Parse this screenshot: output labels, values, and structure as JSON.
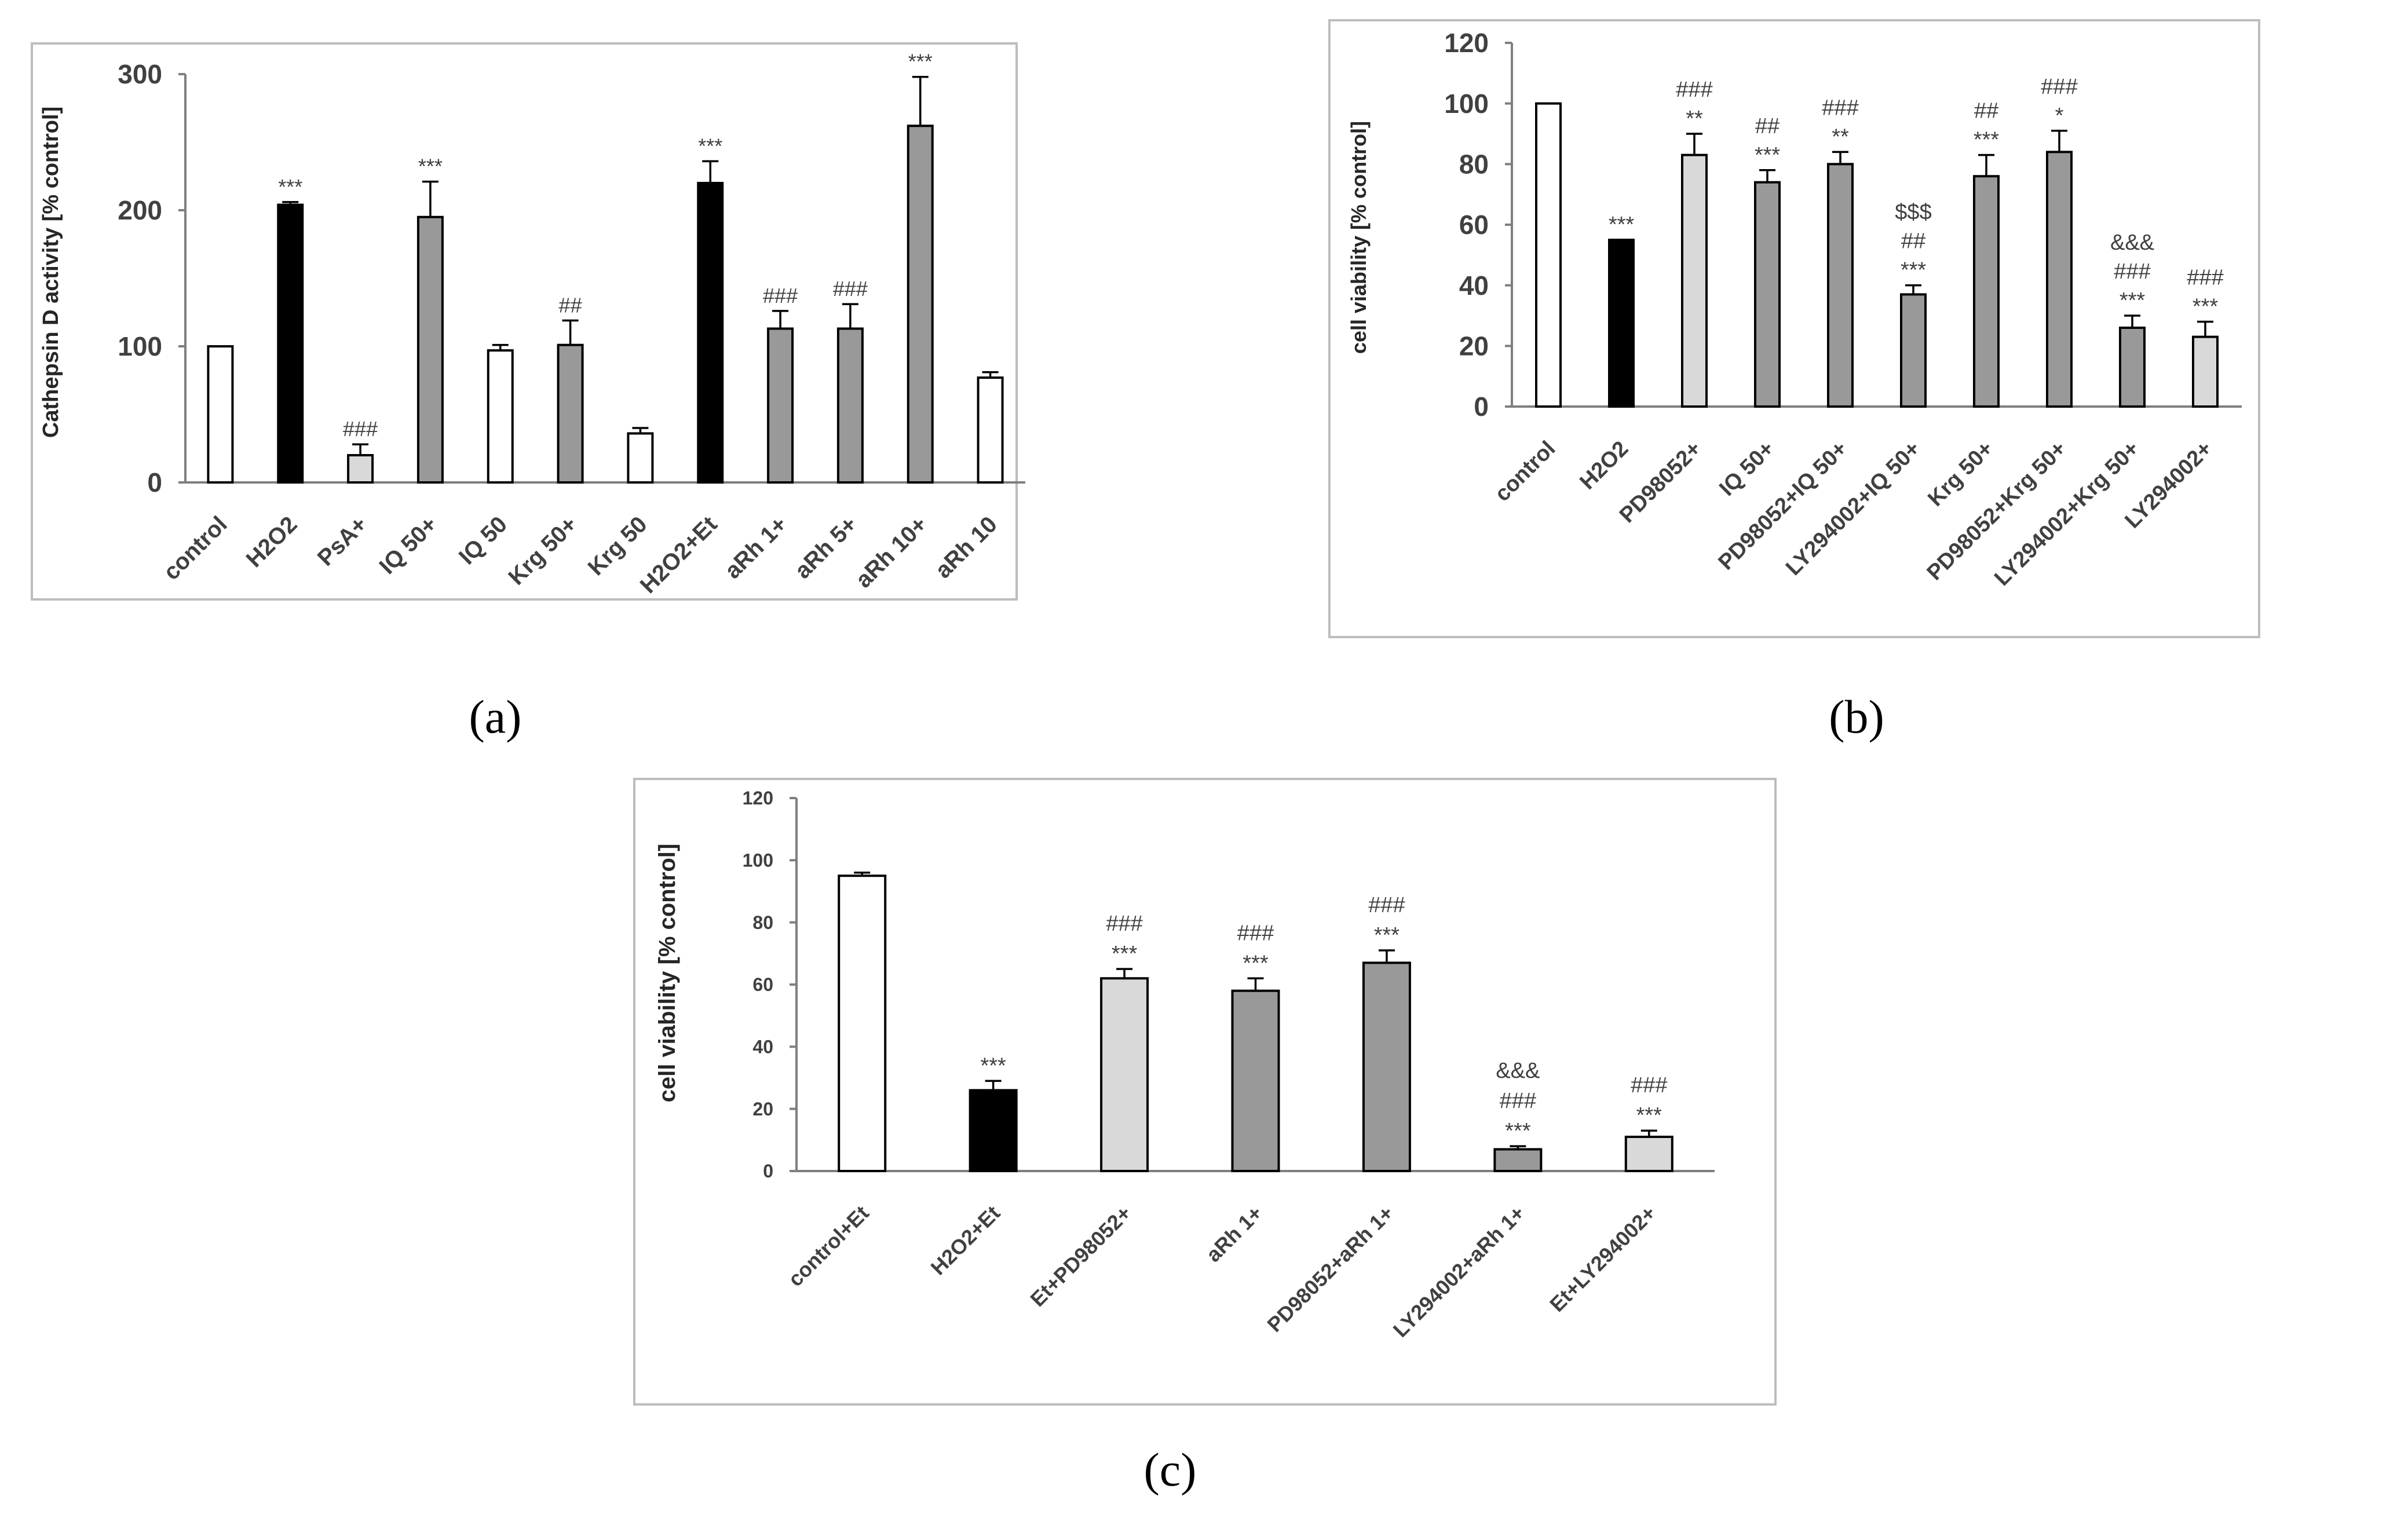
{
  "colors": {
    "white": "#ffffff",
    "black": "#000000",
    "light": "#d9d9d9",
    "grey": "#999999"
  },
  "chart_data": [
    {
      "id": "a",
      "type": "bar",
      "panel_label": "(a)",
      "ylabel": "Cathepsin D activity [% control]",
      "xlabel": "",
      "ylim": [
        0,
        300
      ],
      "yticks": [
        "0",
        "100",
        "200",
        "300"
      ],
      "categories": [
        "control",
        "H2O2",
        "PsA+",
        "IQ 50+",
        "IQ 50",
        "Krg 50+",
        "Krg 50",
        "H2O2+Et",
        "aRh 1+",
        "aRh 5+",
        "aRh 10+",
        "aRh 10"
      ],
      "values": [
        100,
        204,
        20,
        195,
        97,
        101,
        36,
        220,
        113,
        113,
        262,
        77
      ],
      "errors": [
        0,
        2,
        8,
        26,
        4,
        18,
        4,
        16,
        13,
        18,
        36,
        4
      ],
      "fills": [
        "white",
        "black",
        "light",
        "grey",
        "white",
        "grey",
        "white",
        "black",
        "grey",
        "grey",
        "grey",
        "white"
      ],
      "annotations": [
        [],
        [
          "***"
        ],
        [
          "###"
        ],
        [
          "***"
        ],
        [],
        [
          "##"
        ],
        [],
        [
          "***"
        ],
        [
          "###"
        ],
        [
          "###"
        ],
        [
          "***"
        ],
        []
      ]
    },
    {
      "id": "b",
      "type": "bar",
      "panel_label": "(b)",
      "ylabel": "cell viability [% control]",
      "xlabel": "",
      "ylim": [
        0,
        120
      ],
      "yticks": [
        "0",
        "20",
        "40",
        "60",
        "80",
        "100",
        "120"
      ],
      "categories": [
        "control",
        "H2O2",
        "PD98052+",
        "IQ 50+",
        "PD98052+IQ 50+",
        "LY294002+IQ 50+",
        "Krg 50+",
        "PD98052+Krg 50+",
        "LY294002+Krg 50+",
        "LY294002+"
      ],
      "values": [
        100,
        55,
        83,
        74,
        80,
        37,
        76,
        84,
        26,
        23
      ],
      "errors": [
        0,
        0,
        7,
        4,
        4,
        3,
        7,
        7,
        4,
        5
      ],
      "fills": [
        "white",
        "black",
        "light",
        "grey",
        "grey",
        "grey",
        "grey",
        "grey",
        "grey",
        "light"
      ],
      "annotations": [
        [],
        [
          "***"
        ],
        [
          "###",
          "**"
        ],
        [
          "##",
          "***"
        ],
        [
          "###",
          "**"
        ],
        [
          "$$$",
          "##",
          "***"
        ],
        [
          "##",
          "***"
        ],
        [
          "###",
          "*"
        ],
        [
          "&&&",
          "###",
          "***"
        ],
        [
          "###",
          "***"
        ]
      ]
    },
    {
      "id": "c",
      "type": "bar",
      "panel_label": "(c)",
      "ylabel": "cell viability [% control]",
      "xlabel": "",
      "ylim": [
        0,
        120
      ],
      "yticks": [
        "0",
        "20",
        "40",
        "60",
        "80",
        "100",
        "120"
      ],
      "categories": [
        "control+Et",
        "H2O2+Et",
        "Et+PD98052+",
        "aRh 1+",
        "PD98052+aRh 1+",
        "LY294002+aRh 1+",
        "Et+LY294002+"
      ],
      "values": [
        95,
        26,
        62,
        58,
        67,
        7,
        11
      ],
      "errors": [
        1,
        3,
        3,
        4,
        4,
        1,
        2
      ],
      "fills": [
        "white",
        "black",
        "light",
        "grey",
        "grey",
        "grey",
        "light"
      ],
      "annotations": [
        [],
        [
          "***"
        ],
        [
          "###",
          "***"
        ],
        [
          "###",
          "***"
        ],
        [
          "###",
          "***"
        ],
        [
          "&&&",
          "###",
          "***"
        ],
        [
          "###",
          "***"
        ]
      ]
    }
  ]
}
